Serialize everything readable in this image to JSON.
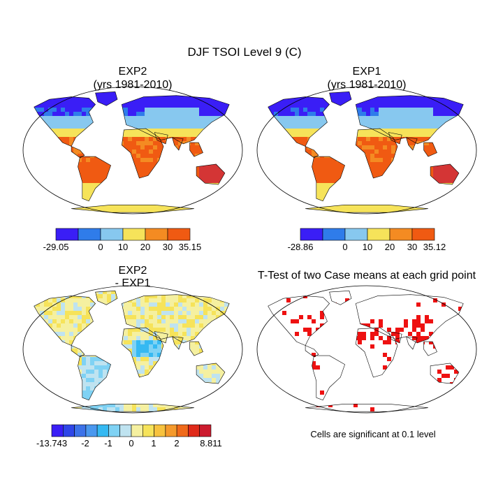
{
  "title": "DJF TSOI Level 9 (C)",
  "colors": {
    "absolute": [
      "#3a1ef6",
      "#2f7cea",
      "#87c8ef",
      "#f6e35a",
      "#f48b22",
      "#f05a12",
      "#d43535"
    ],
    "difference": [
      "#3a1ef6",
      "#2f46e8",
      "#3c72e9",
      "#4a98ef",
      "#35b9f2",
      "#7fd2f4",
      "#bfe3f0",
      "#f5f0a0",
      "#f6e35a",
      "#f7c23e",
      "#f59a2c",
      "#f06a1a",
      "#e02a1a",
      "#cc1b2e"
    ],
    "significant": "#ee1111",
    "land_outline": "#000000"
  },
  "chart_data": [
    {
      "type": "heatmap",
      "projection": "robinson",
      "title_line1": "EXP2",
      "title_line2": "(yrs 1981-2010)",
      "colorbar": {
        "ticks": [
          "-29.05",
          "0",
          "10",
          "20",
          "30",
          "35.15"
        ],
        "min": -29.05,
        "max": 35.15
      }
    },
    {
      "type": "heatmap",
      "projection": "robinson",
      "title_line1": "EXP1",
      "title_line2": "(yrs 1981-2010)",
      "colorbar": {
        "ticks": [
          "-28.86",
          "0",
          "10",
          "20",
          "30",
          "35.12"
        ],
        "min": -28.86,
        "max": 35.12
      }
    },
    {
      "type": "heatmap",
      "projection": "robinson",
      "title_line1": "EXP2",
      "title_line2": "- EXP1",
      "colorbar": {
        "ticks": [
          "-13.743",
          "-2",
          "-1",
          "0",
          "1",
          "2",
          "8.811"
        ],
        "min": -13.743,
        "max": 8.811
      }
    },
    {
      "type": "heatmap",
      "projection": "robinson",
      "title_line1": "T-Test of two Case means at each grid point",
      "note": "Cells are significant at 0.1 level"
    }
  ]
}
